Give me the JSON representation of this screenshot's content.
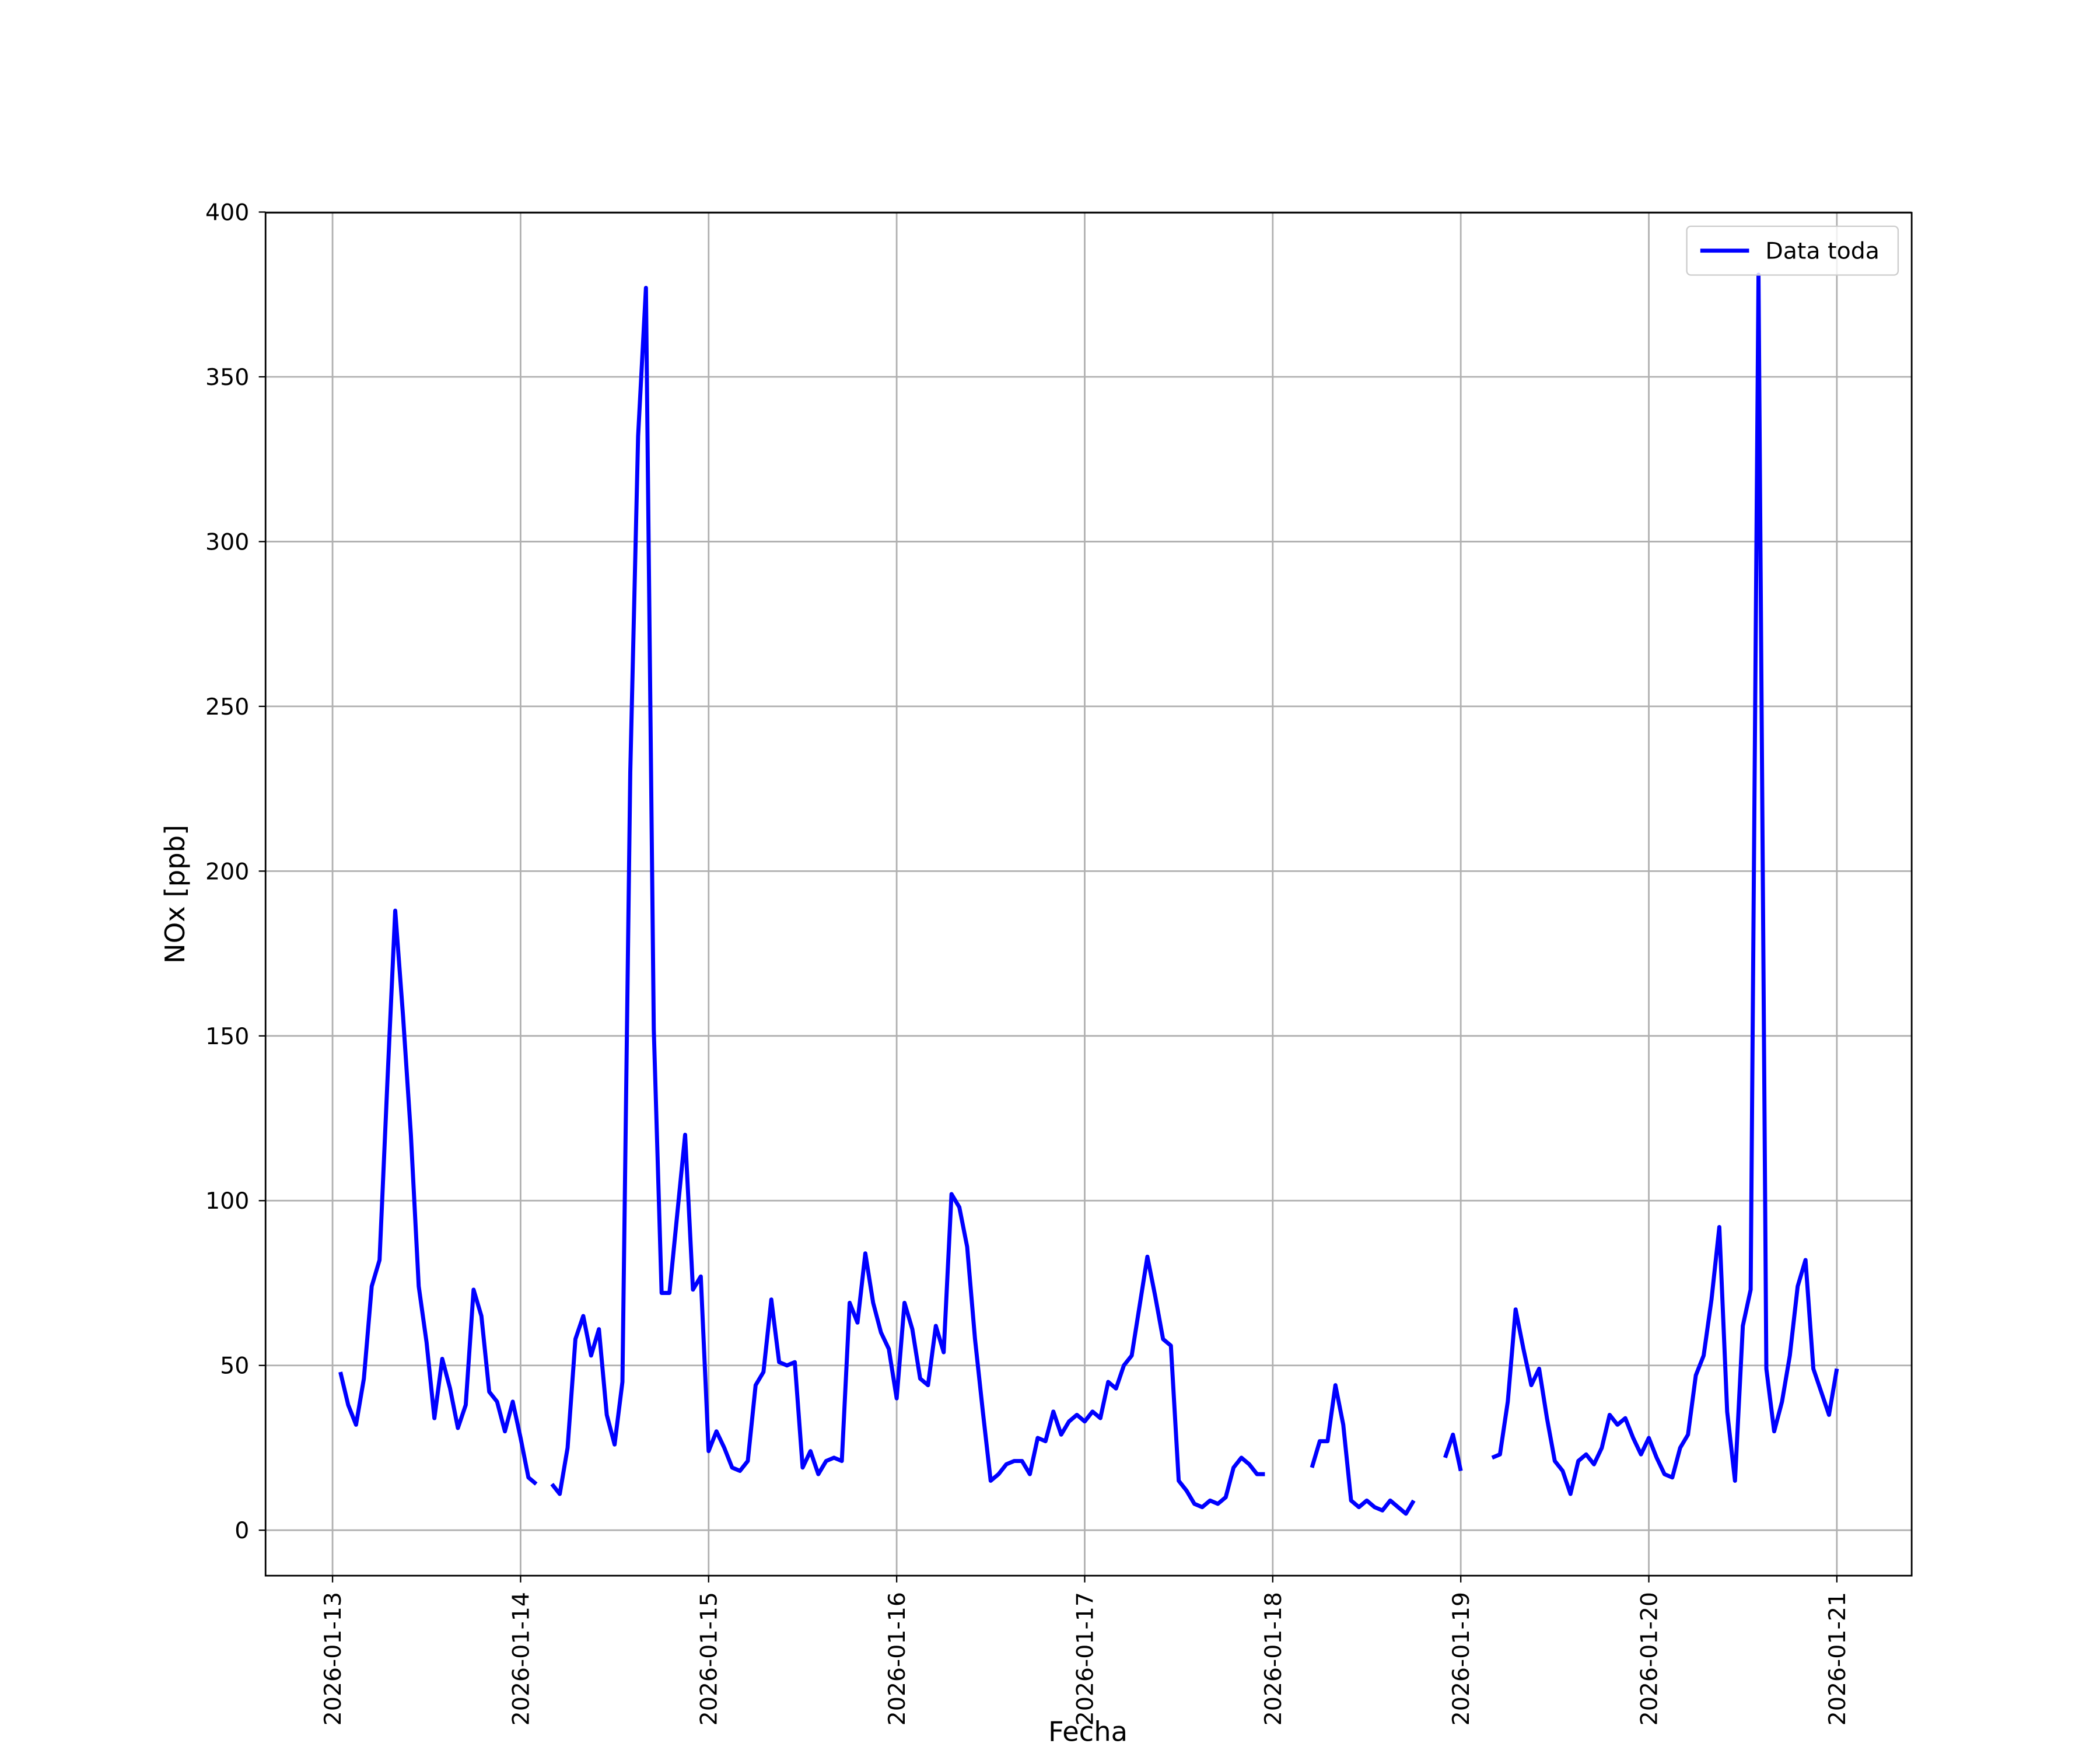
{
  "chart_data": {
    "type": "line",
    "xlabel": "Fecha",
    "ylabel": "NOx [ppb]",
    "x": [
      "2026-01-13 01:00",
      "2026-01-13 02:00",
      "2026-01-13 03:00",
      "2026-01-13 04:00",
      "2026-01-13 05:00",
      "2026-01-13 06:00",
      "2026-01-13 07:00",
      "2026-01-13 08:00",
      "2026-01-13 09:00",
      "2026-01-13 10:00",
      "2026-01-13 11:00",
      "2026-01-13 12:00",
      "2026-01-13 13:00",
      "2026-01-13 14:00",
      "2026-01-13 15:00",
      "2026-01-13 16:00",
      "2026-01-13 17:00",
      "2026-01-13 18:00",
      "2026-01-13 19:00",
      "2026-01-13 20:00",
      "2026-01-13 21:00",
      "2026-01-13 22:00",
      "2026-01-13 23:00",
      "2026-01-14 00:00",
      "2026-01-14 01:00",
      "2026-01-14 02:00",
      "2026-01-14 03:00",
      "2026-01-14 04:00",
      "2026-01-14 05:00",
      "2026-01-14 06:00",
      "2026-01-14 07:00",
      "2026-01-14 08:00",
      "2026-01-14 09:00",
      "2026-01-14 10:00",
      "2026-01-14 11:00",
      "2026-01-14 12:00",
      "2026-01-14 13:00",
      "2026-01-14 14:00",
      "2026-01-14 15:00",
      "2026-01-14 16:00",
      "2026-01-14 17:00",
      "2026-01-14 18:00",
      "2026-01-14 19:00",
      "2026-01-14 20:00",
      "2026-01-14 21:00",
      "2026-01-14 22:00",
      "2026-01-14 23:00",
      "2026-01-15 00:00",
      "2026-01-15 01:00",
      "2026-01-15 02:00",
      "2026-01-15 03:00",
      "2026-01-15 04:00",
      "2026-01-15 05:00",
      "2026-01-15 06:00",
      "2026-01-15 07:00",
      "2026-01-15 08:00",
      "2026-01-15 09:00",
      "2026-01-15 10:00",
      "2026-01-15 11:00",
      "2026-01-15 12:00",
      "2026-01-15 13:00",
      "2026-01-15 14:00",
      "2026-01-15 15:00",
      "2026-01-15 16:00",
      "2026-01-15 17:00",
      "2026-01-15 18:00",
      "2026-01-15 19:00",
      "2026-01-15 20:00",
      "2026-01-15 21:00",
      "2026-01-15 22:00",
      "2026-01-15 23:00",
      "2026-01-16 00:00",
      "2026-01-16 01:00",
      "2026-01-16 02:00",
      "2026-01-16 03:00",
      "2026-01-16 04:00",
      "2026-01-16 05:00",
      "2026-01-16 06:00",
      "2026-01-16 07:00",
      "2026-01-16 08:00",
      "2026-01-16 09:00",
      "2026-01-16 10:00",
      "2026-01-16 11:00",
      "2026-01-16 12:00",
      "2026-01-16 13:00",
      "2026-01-16 14:00",
      "2026-01-16 15:00",
      "2026-01-16 16:00",
      "2026-01-16 17:00",
      "2026-01-16 18:00",
      "2026-01-16 19:00",
      "2026-01-16 20:00",
      "2026-01-16 21:00",
      "2026-01-16 22:00",
      "2026-01-16 23:00",
      "2026-01-17 00:00",
      "2026-01-17 01:00",
      "2026-01-17 02:00",
      "2026-01-17 03:00",
      "2026-01-17 04:00",
      "2026-01-17 05:00",
      "2026-01-17 06:00",
      "2026-01-17 07:00",
      "2026-01-17 08:00",
      "2026-01-17 09:00",
      "2026-01-17 10:00",
      "2026-01-17 11:00",
      "2026-01-17 12:00",
      "2026-01-17 13:00",
      "2026-01-17 14:00",
      "2026-01-17 15:00",
      "2026-01-17 16:00",
      "2026-01-17 17:00",
      "2026-01-17 18:00",
      "2026-01-17 19:00",
      "2026-01-17 20:00",
      "2026-01-17 21:00",
      "2026-01-17 22:00",
      "2026-01-17 23:00",
      "2026-01-18 00:00",
      "2026-01-18 01:00",
      "2026-01-18 02:00",
      "2026-01-18 03:00",
      "2026-01-18 04:00",
      "2026-01-18 05:00",
      "2026-01-18 06:00",
      "2026-01-18 07:00",
      "2026-01-18 08:00",
      "2026-01-18 09:00",
      "2026-01-18 10:00",
      "2026-01-18 11:00",
      "2026-01-18 12:00",
      "2026-01-18 13:00",
      "2026-01-18 14:00",
      "2026-01-18 15:00",
      "2026-01-18 16:00",
      "2026-01-18 17:00",
      "2026-01-18 18:00",
      "2026-01-18 19:00",
      "2026-01-18 20:00",
      "2026-01-18 21:00",
      "2026-01-18 22:00",
      "2026-01-18 23:00",
      "2026-01-19 00:00",
      "2026-01-19 01:00",
      "2026-01-19 02:00",
      "2026-01-19 03:00",
      "2026-01-19 04:00",
      "2026-01-19 05:00",
      "2026-01-19 06:00",
      "2026-01-19 07:00",
      "2026-01-19 08:00",
      "2026-01-19 09:00",
      "2026-01-19 10:00",
      "2026-01-19 11:00",
      "2026-01-19 12:00",
      "2026-01-19 13:00",
      "2026-01-19 14:00",
      "2026-01-19 15:00",
      "2026-01-19 16:00",
      "2026-01-19 17:00",
      "2026-01-19 18:00",
      "2026-01-19 19:00",
      "2026-01-19 20:00",
      "2026-01-19 21:00",
      "2026-01-19 22:00",
      "2026-01-19 23:00",
      "2026-01-20 00:00",
      "2026-01-20 01:00",
      "2026-01-20 02:00",
      "2026-01-20 03:00",
      "2026-01-20 04:00",
      "2026-01-20 05:00",
      "2026-01-20 06:00",
      "2026-01-20 07:00",
      "2026-01-20 08:00",
      "2026-01-20 09:00",
      "2026-01-20 10:00",
      "2026-01-20 11:00",
      "2026-01-20 12:00",
      "2026-01-20 13:00",
      "2026-01-20 14:00",
      "2026-01-20 15:00",
      "2026-01-20 16:00",
      "2026-01-20 17:00",
      "2026-01-20 18:00",
      "2026-01-20 19:00",
      "2026-01-20 20:00",
      "2026-01-20 21:00",
      "2026-01-20 22:00",
      "2026-01-20 23:00",
      "2026-01-21 00:00"
    ],
    "series": [
      {
        "name": "Data toda",
        "color": "#0000ff",
        "values": [
          48,
          38,
          32,
          46,
          74,
          82,
          136,
          188,
          156,
          120,
          74,
          57,
          34,
          52,
          43,
          31,
          38,
          73,
          65,
          42,
          39,
          30,
          39,
          28,
          16,
          14,
          null,
          14,
          11,
          25,
          58,
          65,
          53,
          61,
          35,
          26,
          45,
          230,
          332,
          377,
          152,
          72,
          72,
          96,
          120,
          73,
          77,
          24,
          30,
          25,
          19,
          18,
          21,
          44,
          48,
          70,
          51,
          50,
          51,
          19,
          24,
          17,
          21,
          22,
          21,
          69,
          63,
          84,
          69,
          60,
          55,
          40,
          69,
          61,
          46,
          44,
          62,
          54,
          102,
          98,
          86,
          58,
          36,
          15,
          17,
          20,
          21,
          21,
          17,
          28,
          27,
          36,
          29,
          33,
          35,
          33,
          36,
          34,
          45,
          43,
          50,
          53,
          68,
          83,
          71,
          58,
          56,
          15,
          12,
          8,
          7,
          9,
          8,
          10,
          19,
          22,
          20,
          17,
          17,
          null,
          null,
          null,
          null,
          null,
          19,
          27,
          27,
          44,
          32,
          9,
          7,
          9,
          7,
          6,
          9,
          7,
          5,
          9,
          null,
          null,
          null,
          22,
          29,
          18,
          null,
          null,
          null,
          22,
          23,
          39,
          67,
          55,
          44,
          49,
          34,
          21,
          18,
          11,
          21,
          23,
          20,
          25,
          35,
          32,
          34,
          28,
          23,
          28,
          22,
          17,
          16,
          25,
          29,
          47,
          53,
          70,
          92,
          36,
          15,
          62,
          73,
          381,
          49,
          30,
          39,
          53,
          74,
          82,
          49,
          42,
          35,
          49
        ]
      }
    ],
    "xlim": [
      "2026-01-12 15:27",
      "2026-01-21 09:33"
    ],
    "xticks": [
      "2026-01-13",
      "2026-01-14",
      "2026-01-15",
      "2026-01-16",
      "2026-01-17",
      "2026-01-18",
      "2026-01-19",
      "2026-01-20",
      "2026-01-21"
    ],
    "ylim": [
      -13.8,
      399.8
    ],
    "yticks": [
      0,
      50,
      100,
      150,
      200,
      250,
      300,
      350,
      400
    ],
    "grid": true,
    "legend": "upper right"
  }
}
